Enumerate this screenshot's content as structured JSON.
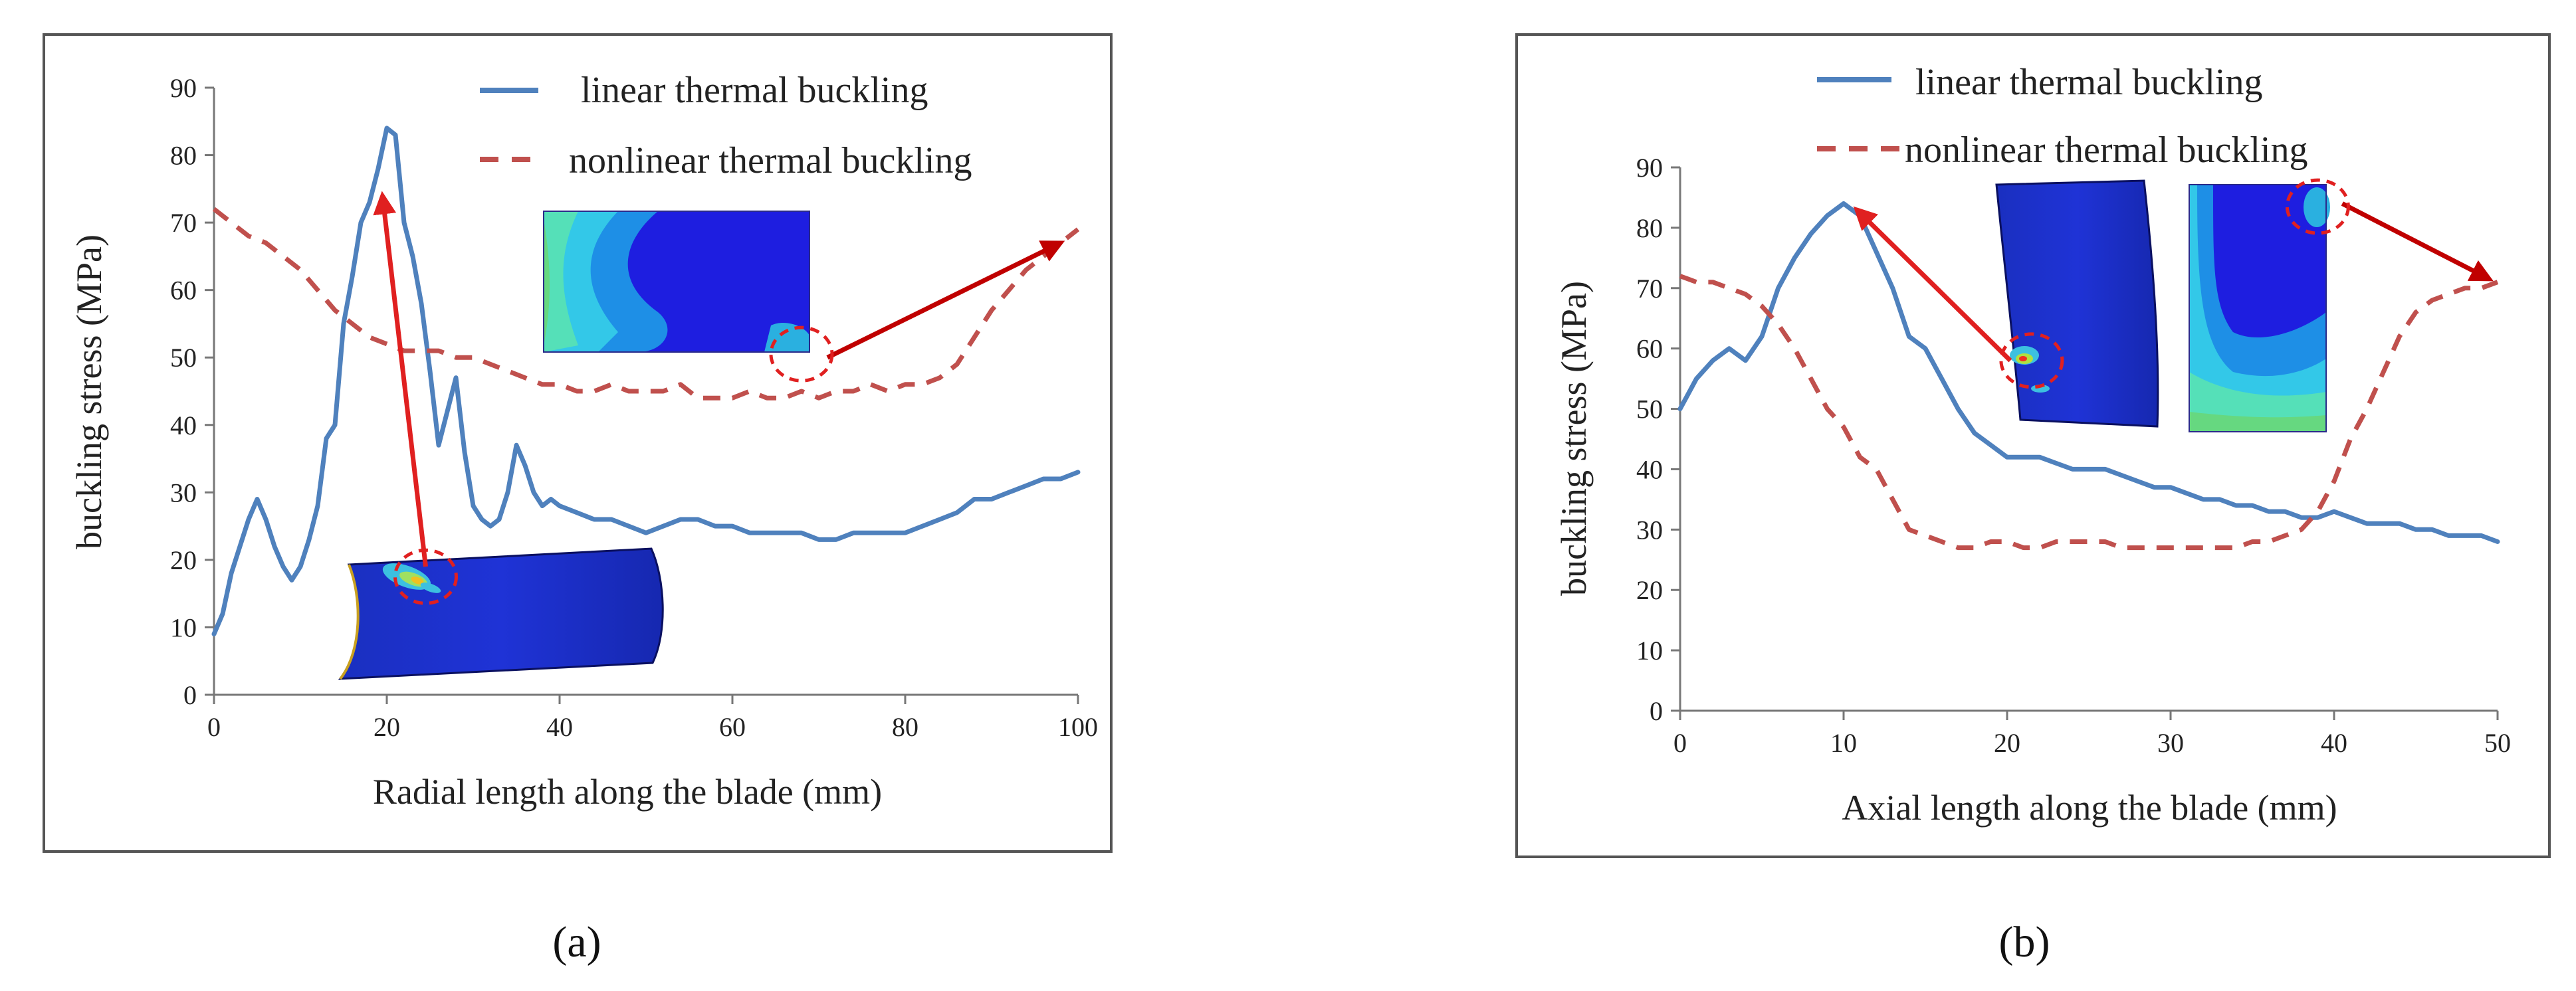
{
  "chart_data": [
    {
      "type": "line",
      "panel": "a",
      "xlabel": "Radial length along  the blade  (mm)",
      "ylabel": "buckling stress (MPa)",
      "xlim": [
        0,
        100
      ],
      "ylim": [
        0,
        90
      ],
      "xticks": [
        0,
        20,
        40,
        60,
        80,
        100
      ],
      "yticks": [
        0,
        10,
        20,
        30,
        40,
        50,
        60,
        70,
        80,
        90
      ],
      "legend_position": "top-right",
      "series": [
        {
          "name": "linear thermal buckling",
          "style": "solid",
          "color": "#4f81bd",
          "x": [
            0,
            1,
            2,
            3,
            4,
            5,
            6,
            7,
            8,
            9,
            10,
            11,
            12,
            13,
            14,
            15,
            16,
            17,
            18,
            19,
            20,
            21,
            22,
            23,
            24,
            25,
            26,
            27,
            28,
            29,
            30,
            31,
            32,
            33,
            34,
            35,
            36,
            37,
            38,
            39,
            40,
            42,
            44,
            46,
            48,
            50,
            52,
            54,
            56,
            58,
            60,
            62,
            64,
            66,
            68,
            70,
            72,
            74,
            76,
            78,
            80,
            82,
            84,
            86,
            88,
            90,
            92,
            94,
            96,
            98,
            100
          ],
          "y": [
            9,
            12,
            18,
            22,
            26,
            29,
            26,
            22,
            19,
            17,
            19,
            23,
            28,
            38,
            40,
            55,
            62,
            70,
            73,
            78,
            84,
            83,
            70,
            65,
            58,
            48,
            37,
            42,
            47,
            36,
            28,
            26,
            25,
            26,
            30,
            37,
            34,
            30,
            28,
            29,
            28,
            27,
            26,
            26,
            25,
            24,
            25,
            26,
            26,
            25,
            25,
            24,
            24,
            24,
            24,
            23,
            23,
            24,
            24,
            24,
            24,
            25,
            26,
            27,
            29,
            29,
            30,
            31,
            32,
            32,
            33
          ]
        },
        {
          "name": "nonlinear thermal buckling",
          "style": "dashed",
          "color": "#c0504d",
          "x": [
            0,
            2,
            4,
            6,
            8,
            10,
            12,
            14,
            16,
            18,
            20,
            22,
            24,
            26,
            28,
            30,
            32,
            34,
            36,
            38,
            40,
            42,
            44,
            46,
            48,
            50,
            52,
            54,
            56,
            58,
            60,
            62,
            64,
            66,
            68,
            70,
            72,
            74,
            76,
            78,
            80,
            82,
            84,
            86,
            88,
            90,
            92,
            94,
            96,
            98,
            100
          ],
          "y": [
            72,
            70,
            68,
            67,
            65,
            63,
            60,
            57,
            55,
            53,
            52,
            51,
            51,
            51,
            50,
            50,
            49,
            48,
            47,
            46,
            46,
            45,
            45,
            46,
            45,
            45,
            45,
            46,
            44,
            44,
            44,
            45,
            44,
            44,
            45,
            44,
            45,
            45,
            46,
            45,
            46,
            46,
            47,
            49,
            53,
            57,
            60,
            63,
            65,
            67,
            69
          ]
        }
      ],
      "annotations": [
        {
          "type": "arrow",
          "from_data": [
            24.5,
            19
          ],
          "to_data": [
            19.5,
            74
          ],
          "color": "#e02020"
        },
        {
          "type": "arrow",
          "from_data": [
            71,
            50
          ],
          "to_data": [
            98,
            67
          ],
          "color": "#c00000"
        },
        {
          "type": "dashed-circle",
          "at_data": [
            24.5,
            17.5
          ],
          "color": "#e02020"
        },
        {
          "type": "dashed-circle",
          "at_data": [
            68,
            50.5
          ],
          "color": "#e02020"
        },
        {
          "type": "inset",
          "description": "blade contour plot"
        }
      ],
      "caption": "(a)"
    },
    {
      "type": "line",
      "panel": "b",
      "xlabel": "Axial length along the  blade  (mm)",
      "ylabel": "buckling stress (MPa)",
      "xlim": [
        0,
        50
      ],
      "ylim": [
        0,
        90
      ],
      "xticks": [
        0,
        10,
        20,
        30,
        40,
        50
      ],
      "yticks": [
        0,
        10,
        20,
        30,
        40,
        50,
        60,
        70,
        80,
        90
      ],
      "legend_position": "top",
      "series": [
        {
          "name": "linear thermal buckling",
          "style": "solid",
          "color": "#4f81bd",
          "x": [
            0,
            1,
            2,
            3,
            4,
            5,
            6,
            7,
            8,
            9,
            10,
            11,
            12,
            13,
            14,
            15,
            16,
            17,
            18,
            19,
            20,
            21,
            22,
            23,
            24,
            25,
            26,
            27,
            28,
            29,
            30,
            31,
            32,
            33,
            34,
            35,
            36,
            37,
            38,
            39,
            40,
            41,
            42,
            43,
            44,
            45,
            46,
            47,
            48,
            49,
            50
          ],
          "y": [
            50,
            55,
            58,
            60,
            58,
            62,
            70,
            75,
            79,
            82,
            84,
            82,
            76,
            70,
            62,
            60,
            55,
            50,
            46,
            44,
            42,
            42,
            42,
            41,
            40,
            40,
            40,
            39,
            38,
            37,
            37,
            36,
            35,
            35,
            34,
            34,
            33,
            33,
            32,
            32,
            33,
            32,
            31,
            31,
            31,
            30,
            30,
            29,
            29,
            29,
            28
          ]
        },
        {
          "name": "nonlinear thermal buckling",
          "style": "dashed",
          "color": "#c0504d",
          "x": [
            0,
            1,
            2,
            3,
            4,
            5,
            6,
            7,
            8,
            9,
            10,
            11,
            12,
            13,
            14,
            15,
            16,
            17,
            18,
            19,
            20,
            21,
            22,
            23,
            24,
            25,
            26,
            27,
            28,
            29,
            30,
            31,
            32,
            33,
            34,
            35,
            36,
            37,
            38,
            39,
            40,
            41,
            42,
            43,
            44,
            45,
            46,
            47,
            48,
            49,
            50
          ],
          "y": [
            72,
            71,
            71,
            70,
            69,
            67,
            64,
            60,
            55,
            50,
            47,
            42,
            40,
            35,
            30,
            29,
            28,
            27,
            27,
            28,
            28,
            27,
            27,
            28,
            28,
            28,
            28,
            27,
            27,
            27,
            27,
            27,
            27,
            27,
            27,
            28,
            28,
            29,
            30,
            33,
            38,
            45,
            50,
            56,
            62,
            66,
            68,
            69,
            70,
            70,
            71
          ]
        }
      ],
      "annotations": [
        {
          "type": "arrow",
          "from_data": [
            20.2,
            58
          ],
          "to_data": [
            10.8,
            83
          ],
          "color": "#e02020"
        },
        {
          "type": "arrow",
          "from_data": [
            40.5,
            84
          ],
          "to_data": [
            49.5,
            71.5
          ],
          "color": "#c00000"
        },
        {
          "type": "dashed-circle",
          "at_data": [
            21.5,
            58
          ],
          "color": "#e02020"
        },
        {
          "type": "dashed-circle",
          "at_data": [
            39,
            83.5
          ],
          "color": "#e02020"
        },
        {
          "type": "inset",
          "description": "blade contour plots"
        }
      ],
      "caption": "(b)"
    }
  ],
  "colors": {
    "linear": "#4f81bd",
    "nonlinear": "#c0504d",
    "arrow": "#e02020",
    "arrow_dark": "#c00000"
  }
}
